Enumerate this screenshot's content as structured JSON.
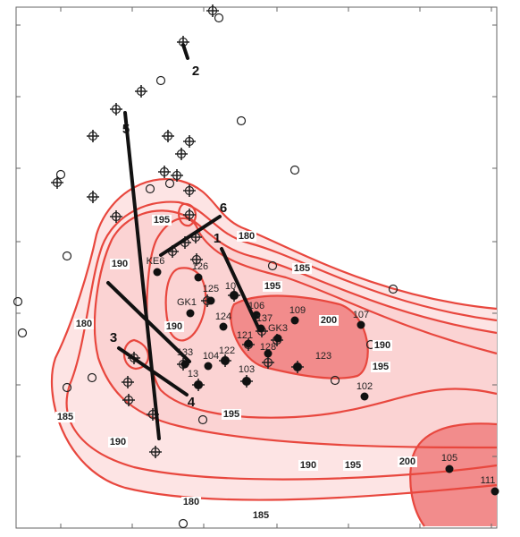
{
  "contour_labels": [
    "180",
    "180",
    "180",
    "185",
    "185",
    "185",
    "190",
    "190",
    "190",
    "190",
    "190",
    "195",
    "195",
    "195",
    "195",
    "195",
    "200",
    "200"
  ],
  "wells": [
    {
      "label": "105"
    },
    {
      "label": "111"
    },
    {
      "label": "102"
    },
    {
      "label": "107"
    },
    {
      "label": "109"
    },
    {
      "label": "123"
    },
    {
      "label": "103"
    },
    {
      "label": "104"
    },
    {
      "label": "122"
    },
    {
      "label": "13"
    },
    {
      "label": "133"
    },
    {
      "label": "124"
    },
    {
      "label": "125"
    },
    {
      "label": "126"
    },
    {
      "label": "106"
    },
    {
      "label": "137"
    },
    {
      "label": "121"
    },
    {
      "label": "GK3"
    },
    {
      "label": "128"
    },
    {
      "label": "GK1"
    },
    {
      "label": "KE6"
    },
    {
      "label": "10"
    }
  ],
  "sections": [
    {
      "label": "1"
    },
    {
      "label": "2"
    },
    {
      "label": "3"
    },
    {
      "label": "4"
    },
    {
      "label": "5"
    },
    {
      "label": "6"
    }
  ]
}
